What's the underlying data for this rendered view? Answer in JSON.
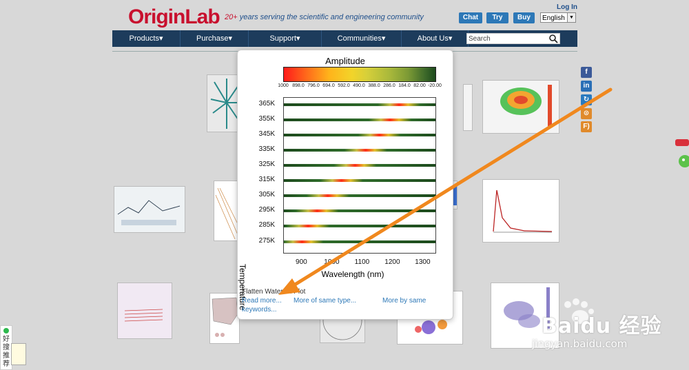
{
  "header": {
    "logo_text": "OriginLab",
    "tagline_num": "20+",
    "tagline_rest": " years serving the scientific and engineering community",
    "login_label": "Log In",
    "buttons": [
      "Chat",
      "Try",
      "Buy"
    ],
    "language_selected": "English"
  },
  "nav": {
    "items": [
      "Products▾",
      "Purchase▾",
      "Support▾",
      "Communities▾",
      "About Us▾"
    ],
    "search_placeholder": "Search"
  },
  "social": {
    "icons": [
      "facebook-icon",
      "linkedin-icon",
      "share-icon",
      "rss-icon",
      "feed-icon"
    ],
    "glyphs": [
      "f",
      "in",
      "↻",
      "⊙",
      "F)"
    ],
    "colors": [
      "#3b5998",
      "#2a6fb6",
      "#2a7abf",
      "#e08a2b",
      "#e08a2b"
    ]
  },
  "popup": {
    "caption_title": "Flatten Waterfall Plot",
    "read_more": "Read more...",
    "more_same_type": "More of same type...",
    "more_same": "More by same",
    "keywords": "keywords..."
  },
  "chart_data": {
    "type": "heatmap",
    "title": "Amplitude",
    "xlabel": "Wavelength (nm)",
    "ylabel": "Temperature",
    "colorbar_ticks": [
      "1000",
      "898.0",
      "796.0",
      "694.0",
      "592.0",
      "490.0",
      "388.0",
      "286.0",
      "184.0",
      "82.00",
      "-20.00"
    ],
    "x_ticks": [
      900,
      1000,
      1100,
      1200,
      1300
    ],
    "xlim": [
      840,
      1340
    ],
    "y_ticks": [
      "365K",
      "355K",
      "345K",
      "335K",
      "325K",
      "315K",
      "305K",
      "295K",
      "285K",
      "275K"
    ],
    "series": [
      {
        "name": "365K",
        "peak_x": 1220
      },
      {
        "name": "355K",
        "peak_x": 1190
      },
      {
        "name": "345K",
        "peak_x": 1155
      },
      {
        "name": "335K",
        "peak_x": 1110
      },
      {
        "name": "325K",
        "peak_x": 1075
      },
      {
        "name": "315K",
        "peak_x": 1030
      },
      {
        "name": "305K",
        "peak_x": 985
      },
      {
        "name": "295K",
        "peak_x": 950
      },
      {
        "name": "285K",
        "peak_x": 920
      },
      {
        "name": "275K",
        "peak_x": 900
      }
    ]
  },
  "watermark": {
    "brand": "Baidu 经验",
    "url": "jingyan.baidu.com"
  },
  "side_widget": {
    "label": "好搜推荐"
  },
  "colors": {
    "nav_bg": "#1d3c5c",
    "button_blue": "#2d78b7",
    "arrow_orange": "#f0881e",
    "brand_red": "#c8102e"
  }
}
